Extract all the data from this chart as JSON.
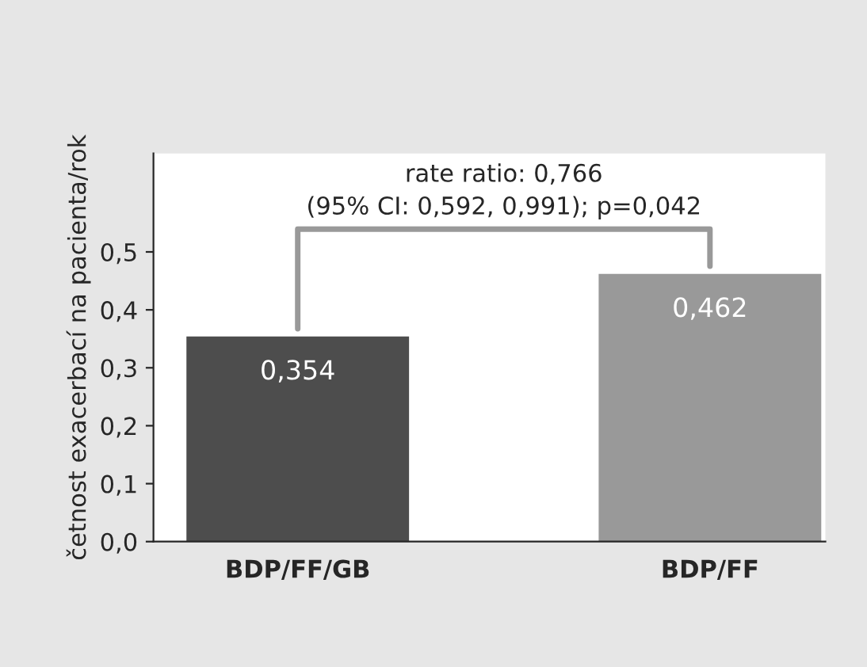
{
  "chart_data": {
    "type": "bar",
    "ylabel": "četnost exacerbací na pacienta/rok",
    "categories": [
      "BDP/FF/GB",
      "BDP/FF"
    ],
    "values": [
      0.354,
      0.462
    ],
    "colors": [
      "#4d4d4d",
      "#999999"
    ],
    "value_labels": [
      "0,354",
      "0,462"
    ],
    "ylim": [
      0,
      0.67
    ],
    "yticks": [
      {
        "value": 0,
        "label": "0,0"
      },
      {
        "value": 0.1,
        "label": "0,1"
      },
      {
        "value": 0.2,
        "label": "0,2"
      },
      {
        "value": 0.3,
        "label": "0,3"
      },
      {
        "value": 0.4,
        "label": "0,4"
      },
      {
        "value": 0.5,
        "label": "0,5"
      }
    ],
    "annotations": [
      "rate ratio: 0,766",
      "(95% CI: 0,592, 0,991); p=0,042"
    ],
    "grid": false
  }
}
